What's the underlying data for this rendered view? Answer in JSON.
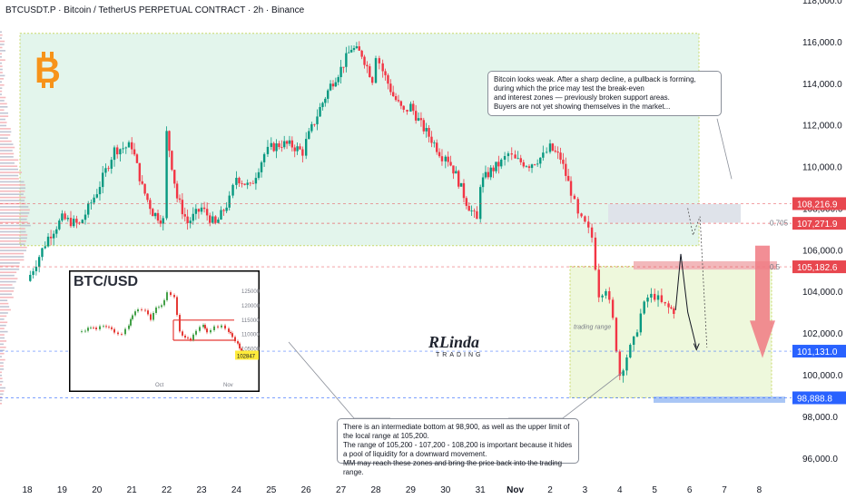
{
  "header": {
    "title": "BTCUSDT.P · Bitcoin / TetherUS PERPETUAL CONTRACT · 2h · Binance"
  },
  "colors": {
    "up": "#089981",
    "down": "#f23645",
    "accent_red": "#e8474f",
    "accent_blue": "#2962ff",
    "zone_green": "#e1f5ea"
  },
  "icons": [
    "bitcoin-logo",
    "arrow-down-icon"
  ],
  "logo": {
    "brand": "RLinda",
    "sub": "TRADING"
  },
  "notes": {
    "top": [
      "Bitcoin looks weak. After a sharp decline, a pullback is forming,",
      "during which the price may test the break-even",
      "and interest zones — previously broken support areas.",
      "Buyers are not yet showing themselves in the market..."
    ],
    "bottom": [
      "There is an intermediate bottom at 98,900, as well as the upper limit of the local range at 105,200.",
      "The range of 105,200 - 107,200 - 108,200 is important because it hides a pool of liquidity for a downward movement.",
      "MM may reach these zones and bring the price back into the trading range."
    ]
  },
  "annotations": {
    "range": "trading range"
  },
  "chart_data": {
    "type": "candlestick",
    "ylim": [
      94900,
      118000
    ],
    "y_ticks": [
      "96,000.0",
      "98,000.0",
      "100,000.0",
      "102,000.0",
      "104,000.0",
      "106,000.0",
      "108,000.0",
      "110,000.0",
      "112,000.0",
      "114,000.0",
      "116,000.0",
      "118,000.0"
    ],
    "y_tick_values": [
      96000,
      98000,
      100000,
      102000,
      104000,
      106000,
      108000,
      110000,
      112000,
      114000,
      116000,
      118000
    ],
    "x_ticks": [
      "18",
      "19",
      "20",
      "21",
      "22",
      "23",
      "24",
      "25",
      "26",
      "27",
      "28",
      "29",
      "30",
      "31",
      "Nov",
      "2",
      "3",
      "4",
      "5",
      "6",
      "7",
      "8"
    ],
    "price_tags": [
      {
        "label": "108,216.9",
        "value": 108216.9,
        "color": "#e8474f"
      },
      {
        "label": "107,271.9",
        "value": 107271.9,
        "color": "#e8474f"
      },
      {
        "label": "105,182.6",
        "value": 105182.6,
        "color": "#e8474f"
      },
      {
        "label": "101,131.0",
        "value": 101131.0,
        "color": "#2962ff"
      },
      {
        "label": "98,888.8",
        "value": 98888.8,
        "color": "#2962ff"
      }
    ],
    "fib_levels": [
      {
        "label": "0.705",
        "value": 107300
      },
      {
        "label": "0.5",
        "value": 105182.6
      }
    ],
    "path": [
      [
        18,
        104500
      ],
      [
        18.6,
        106600
      ],
      [
        19,
        107500
      ],
      [
        19.5,
        107200
      ],
      [
        20,
        108800
      ],
      [
        20.5,
        110800
      ],
      [
        21,
        111000
      ],
      [
        21.3,
        109000
      ],
      [
        21.6,
        107800
      ],
      [
        21.9,
        107400
      ],
      [
        22,
        111600
      ],
      [
        22.3,
        108500
      ],
      [
        22.6,
        107300
      ],
      [
        23,
        108000
      ],
      [
        23.4,
        107200
      ],
      [
        23.8,
        108400
      ],
      [
        24,
        109500
      ],
      [
        24.4,
        109000
      ],
      [
        24.8,
        110600
      ],
      [
        25,
        110900
      ],
      [
        25.3,
        111100
      ],
      [
        25.6,
        111000
      ],
      [
        25.9,
        110700
      ],
      [
        26,
        111200
      ],
      [
        26.4,
        112800
      ],
      [
        26.7,
        113900
      ],
      [
        27,
        114700
      ],
      [
        27.3,
        115700
      ],
      [
        27.6,
        115400
      ],
      [
        27.9,
        114200
      ],
      [
        28,
        115400
      ],
      [
        28.2,
        114600
      ],
      [
        28.5,
        113400
      ],
      [
        28.8,
        112600
      ],
      [
        29,
        112900
      ],
      [
        29.3,
        112000
      ],
      [
        29.6,
        111300
      ],
      [
        29.9,
        110500
      ],
      [
        30,
        110600
      ],
      [
        30.3,
        109600
      ],
      [
        30.6,
        108300
      ],
      [
        30.9,
        107400
      ],
      [
        31,
        109200
      ],
      [
        31.3,
        109800
      ],
      [
        31.6,
        110200
      ],
      [
        31.8,
        110600
      ],
      [
        32,
        110300
      ],
      [
        32.4,
        110100
      ],
      [
        32.8,
        110500
      ],
      [
        33,
        110900
      ],
      [
        33.3,
        110400
      ],
      [
        33.6,
        108800
      ],
      [
        33.8,
        107600
      ],
      [
        34,
        107200
      ],
      [
        34.2,
        106600
      ],
      [
        34.4,
        103900
      ],
      [
        34.6,
        104200
      ],
      [
        34.8,
        102600
      ],
      [
        35,
        100000
      ],
      [
        35.2,
        100900
      ],
      [
        35.4,
        101600
      ],
      [
        35.6,
        102900
      ],
      [
        35.8,
        103700
      ],
      [
        36,
        103800
      ],
      [
        36.2,
        103400
      ],
      [
        36.4,
        103200
      ],
      [
        36.55,
        103100
      ]
    ],
    "inset": {
      "title": "BTC/USD",
      "x_ticks": [
        "Oct",
        "Nov"
      ],
      "y_ticks": [
        "125000",
        "120000",
        "115000",
        "110000",
        "105000"
      ],
      "last": "102847"
    }
  }
}
